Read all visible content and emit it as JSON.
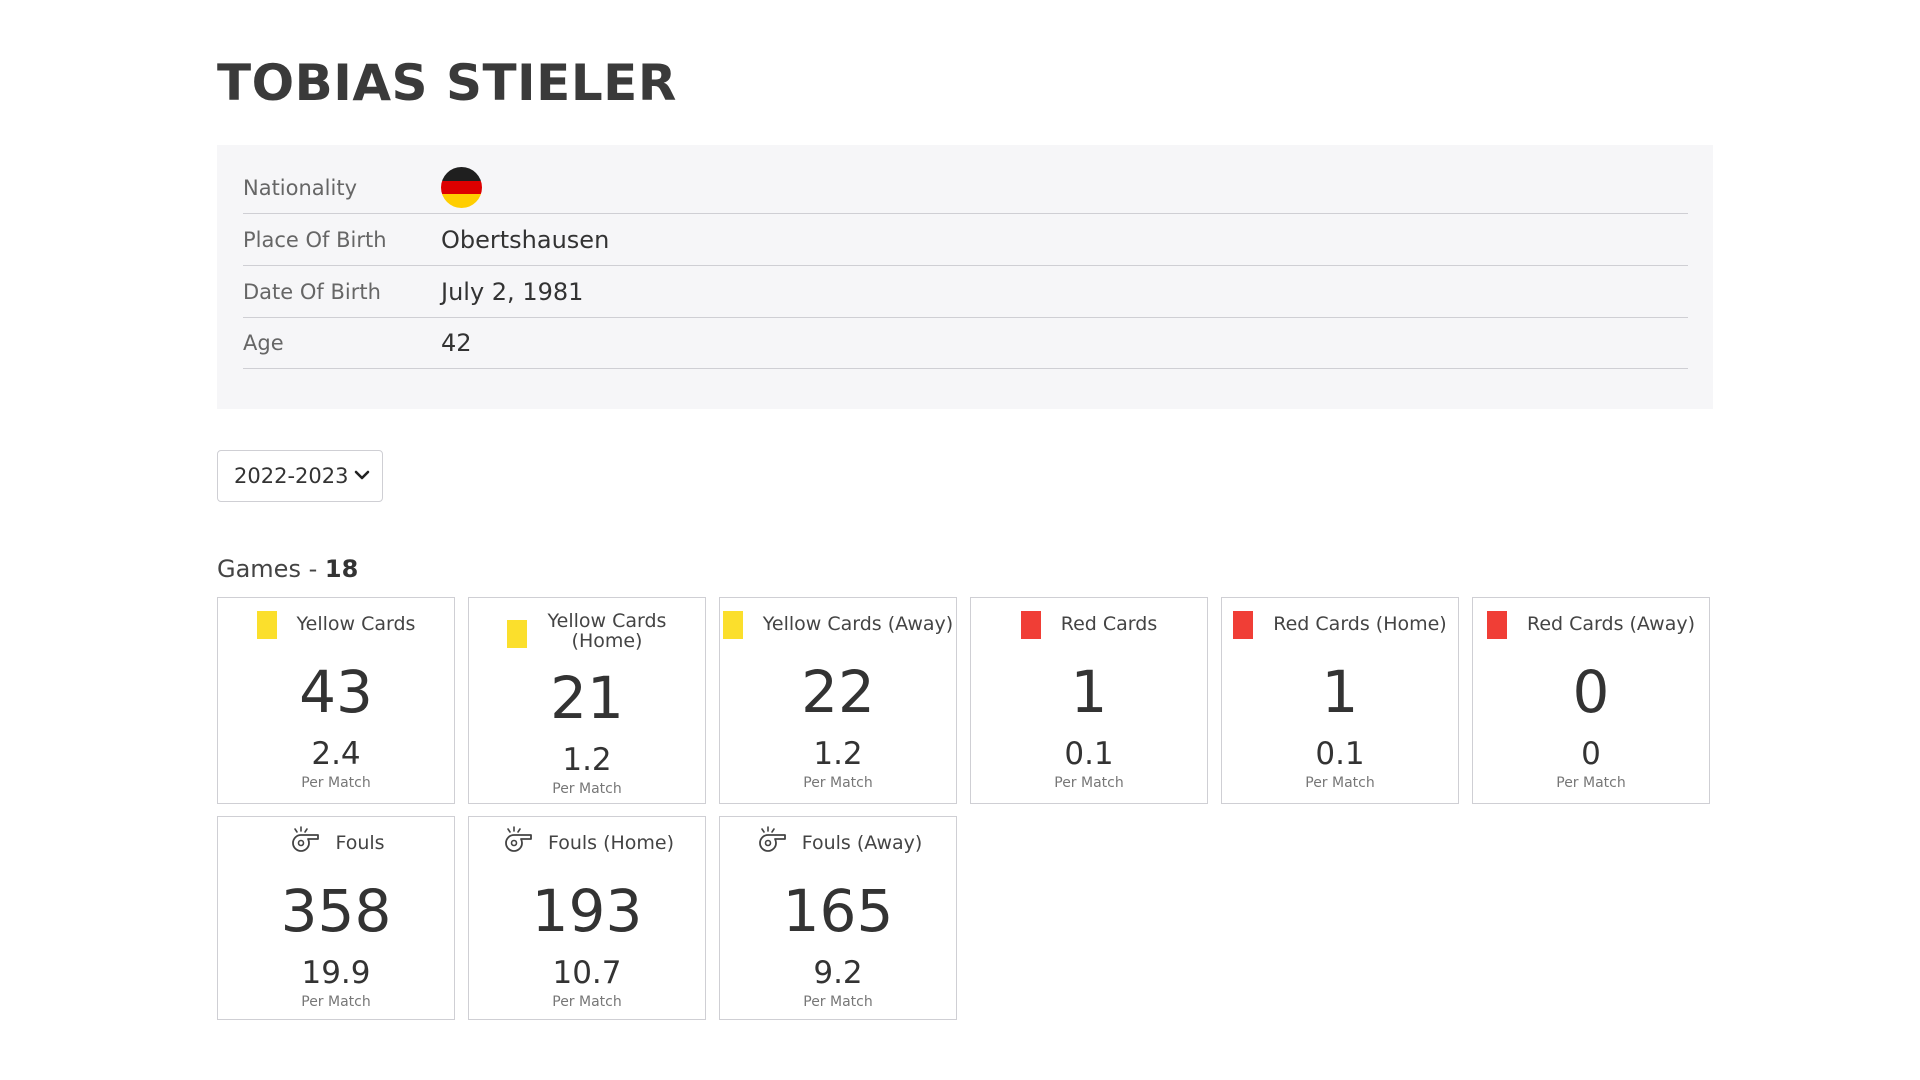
{
  "player": {
    "name": "TOBIAS STIELER"
  },
  "info": {
    "nationality_label": "Nationality",
    "nationality_flag": "germany-flag",
    "place_of_birth_label": "Place Of Birth",
    "place_of_birth": "Obertshausen",
    "date_of_birth_label": "Date Of Birth",
    "date_of_birth": "July 2, 1981",
    "age_label": "Age",
    "age": "42"
  },
  "season": {
    "selected": "2022-2023"
  },
  "games": {
    "label": "Games - ",
    "count": "18"
  },
  "colors": {
    "yellow_card": "#fbdf2c",
    "red_card": "#f03e36",
    "flag_black": "#1f1f1f",
    "flag_red": "#dd0000",
    "flag_gold": "#ffce00"
  },
  "cards": [
    {
      "icon": "yellow-card-icon",
      "title": "Yellow Cards",
      "total": "43",
      "per_match": "2.4",
      "per_match_label": "Per Match"
    },
    {
      "icon": "yellow-card-icon",
      "title": "Yellow Cards (Home)",
      "total": "21",
      "per_match": "1.2",
      "per_match_label": "Per Match"
    },
    {
      "icon": "yellow-card-icon",
      "title": "Yellow Cards (Away)",
      "total": "22",
      "per_match": "1.2",
      "per_match_label": "Per Match"
    },
    {
      "icon": "red-card-icon",
      "title": "Red Cards",
      "total": "1",
      "per_match": "0.1",
      "per_match_label": "Per Match"
    },
    {
      "icon": "red-card-icon",
      "title": "Red Cards (Home)",
      "total": "1",
      "per_match": "0.1",
      "per_match_label": "Per Match"
    },
    {
      "icon": "red-card-icon",
      "title": "Red Cards (Away)",
      "total": "0",
      "per_match": "0",
      "per_match_label": "Per Match"
    },
    {
      "icon": "whistle-icon",
      "title": "Fouls",
      "total": "358",
      "per_match": "19.9",
      "per_match_label": "Per Match"
    },
    {
      "icon": "whistle-icon",
      "title": "Fouls (Home)",
      "total": "193",
      "per_match": "10.7",
      "per_match_label": "Per Match"
    },
    {
      "icon": "whistle-icon",
      "title": "Fouls (Away)",
      "total": "165",
      "per_match": "9.2",
      "per_match_label": "Per Match"
    }
  ]
}
